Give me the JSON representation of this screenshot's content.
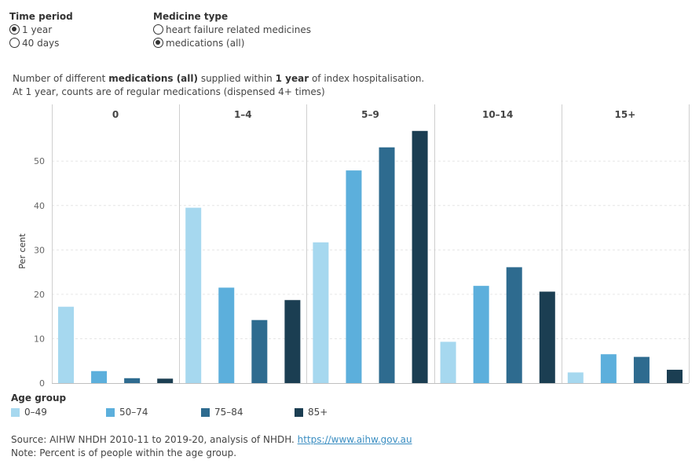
{
  "controls": {
    "time_period": {
      "title": "Time period",
      "options": [
        {
          "label": "1 year",
          "selected": true
        },
        {
          "label": "40 days",
          "selected": false
        }
      ]
    },
    "medicine_type": {
      "title": "Medicine type",
      "options": [
        {
          "label": "heart failure related medicines",
          "selected": false
        },
        {
          "label": "medications (all)",
          "selected": true
        }
      ]
    }
  },
  "subtitle": {
    "line1_pre": "Number of different ",
    "line1_bold1": "medications (all)",
    "line1_mid": " supplied within ",
    "line1_bold2": "1 year",
    "line1_post": "  of index hospitalisation.",
    "line2": "At 1 year, counts are of regular medications (dispensed 4+ times)"
  },
  "colors": {
    "series": [
      "#a6d8ef",
      "#5cafdc",
      "#2e6b8f",
      "#1b3e52"
    ],
    "grid": "#e6e6e6",
    "divider": "#cfcfcf",
    "link": "#3b8ec2"
  },
  "chart_data": {
    "type": "bar",
    "panels": [
      "0",
      "1–4",
      "5–9",
      "10–14",
      "15+"
    ],
    "ylabel": "Per cent",
    "ylim": [
      0,
      58
    ],
    "yticks": [
      0,
      10,
      20,
      30,
      40,
      50
    ],
    "grid": true,
    "series": [
      {
        "name": "0–49",
        "values": [
          17.2,
          39.5,
          31.7,
          9.3,
          2.4
        ]
      },
      {
        "name": "50–74",
        "values": [
          2.7,
          21.5,
          47.9,
          21.9,
          6.5
        ]
      },
      {
        "name": "75–84",
        "values": [
          1.1,
          14.2,
          53.1,
          26.1,
          5.9
        ]
      },
      {
        "name": "85+",
        "values": [
          1.0,
          18.7,
          56.8,
          20.6,
          3.0
        ]
      }
    ]
  },
  "legend": {
    "title": "Age group",
    "items": [
      "0–49",
      "50–74",
      "75–84",
      "85+"
    ]
  },
  "footer": {
    "source_text": "Source: AIHW NHDH 2010-11 to 2019-20, analysis of NHDH. ",
    "source_link": "https://www.aihw.gov.au",
    "note": "Note: Percent is of people within the age group."
  }
}
